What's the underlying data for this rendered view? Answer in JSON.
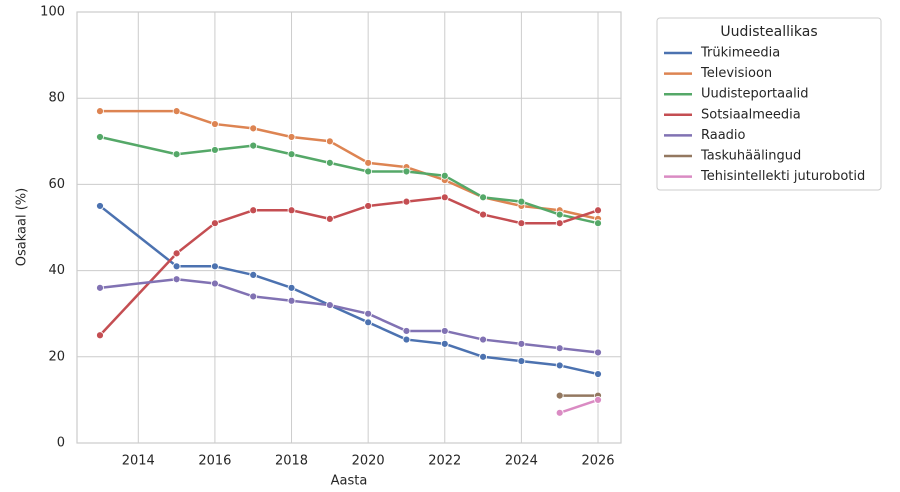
{
  "chart_data": {
    "type": "line",
    "x_label": "Aasta",
    "y_label": "Osakaal (%)",
    "x": [
      2013,
      2015,
      2016,
      2017,
      2018,
      2019,
      2020,
      2021,
      2022,
      2023,
      2024,
      2025,
      2026
    ],
    "series": [
      {
        "name": "Trükimeedia",
        "color": "#4c72b0",
        "values": [
          55,
          41,
          41,
          39,
          36,
          32,
          28,
          24,
          23,
          20,
          19,
          18,
          16
        ]
      },
      {
        "name": "Televisioon",
        "color": "#dd8452",
        "values": [
          77,
          77,
          74,
          73,
          71,
          70,
          65,
          64,
          61,
          57,
          55,
          54,
          52
        ]
      },
      {
        "name": "Uudisteportaalid",
        "color": "#55a868",
        "values": [
          71,
          67,
          68,
          69,
          67,
          65,
          63,
          63,
          62,
          57,
          56,
          53,
          51
        ]
      },
      {
        "name": "Sotsiaalmeedia",
        "color": "#c44e52",
        "values": [
          25,
          44,
          51,
          54,
          54,
          52,
          55,
          56,
          57,
          53,
          51,
          51,
          54
        ]
      },
      {
        "name": "Raadio",
        "color": "#8172b3",
        "values": [
          36,
          38,
          37,
          34,
          33,
          32,
          30,
          26,
          26,
          24,
          23,
          22,
          21
        ]
      },
      {
        "name": "Taskuhäälingud",
        "color": "#937860",
        "values": [
          null,
          null,
          null,
          null,
          null,
          null,
          null,
          null,
          null,
          null,
          null,
          11,
          11
        ]
      },
      {
        "name": "Tehisintellekti juturobotid",
        "color": "#da8bc3",
        "values": [
          null,
          null,
          null,
          null,
          null,
          null,
          null,
          null,
          null,
          null,
          null,
          7,
          10
        ]
      }
    ],
    "legend_title": "Uudisteallikas",
    "xlim": [
      2012.4,
      2026.6
    ],
    "xticks": [
      2014,
      2016,
      2018,
      2020,
      2022,
      2024,
      2026
    ],
    "ylim": [
      0,
      100
    ],
    "yticks": [
      0,
      20,
      40,
      60,
      80,
      100
    ],
    "grid": true,
    "legend_position": "outside-right"
  }
}
